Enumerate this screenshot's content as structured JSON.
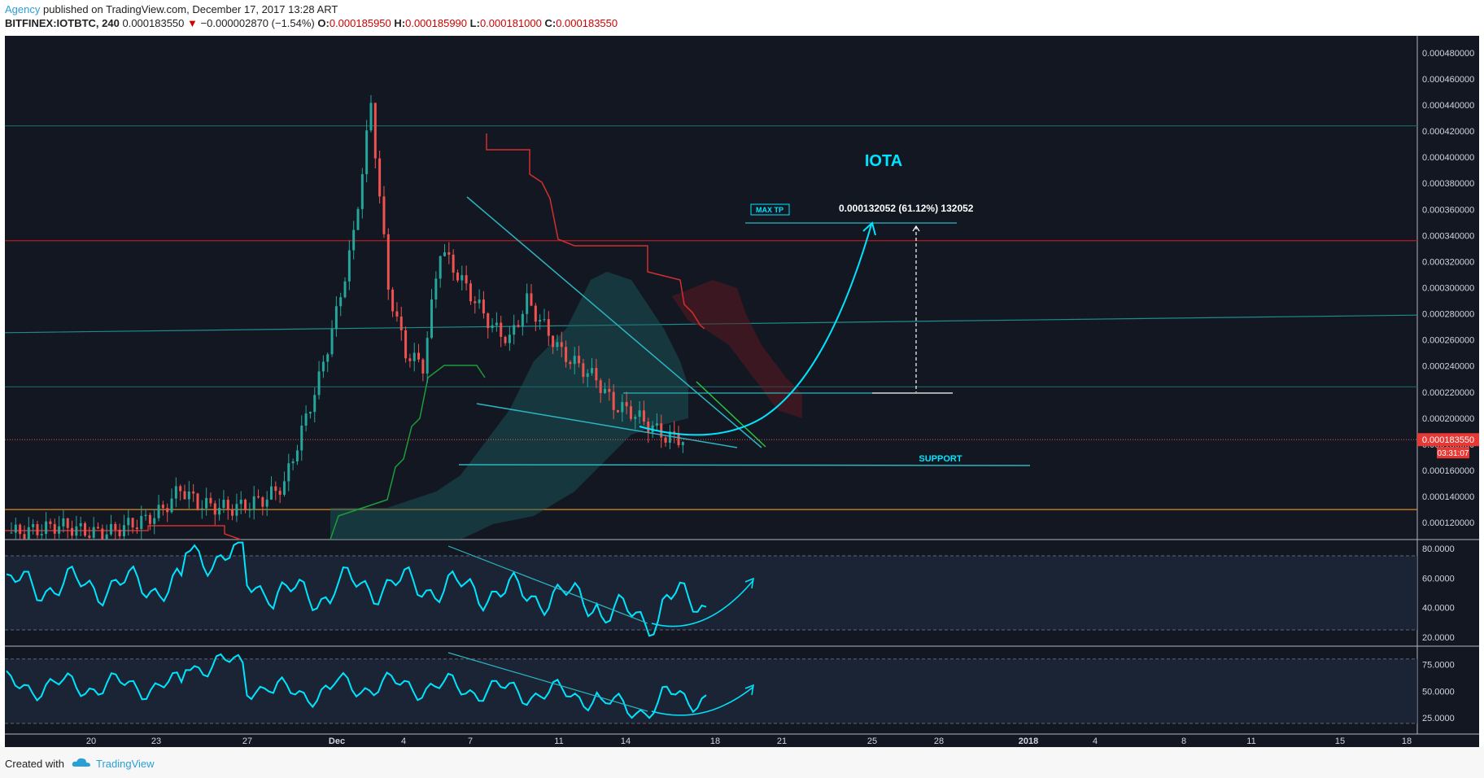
{
  "header": {
    "author": "Agency",
    "published": "published on TradingView.com, December 17, 2017 13:28 ART",
    "symbol": "BITFINEX:IOTBTC, 240",
    "last": "0.000183550",
    "arrow": "▼",
    "change": "−0.000002870 (−1.54%)",
    "o_label": "O:",
    "o_val": "0.000185950",
    "h_label": "H:",
    "h_val": "0.000185990",
    "l_label": "L:",
    "l_val": "0.000181000",
    "c_label": "C:",
    "c_val": "0.000183550"
  },
  "footer": {
    "created": "Created with",
    "brand": "TradingView",
    "logo_icon": "tradingview-cloud-icon"
  },
  "colors": {
    "background": "#131722",
    "up": "#26a69a",
    "down": "#ef5350",
    "cyan": "#00e5ff",
    "teal": "#1e8c8c",
    "red_line": "#b71c1c",
    "orange_line": "#e08a1e",
    "rsi": "#00e5ff"
  },
  "chart_data": [
    {
      "type": "candlestick",
      "title": "IOTA",
      "symbol": "BITFINEX:IOTBTC",
      "interval": "240",
      "y_ticks": [
        "0.000120000",
        "0.000140000",
        "0.000160000",
        "0.000180000",
        "0.000200000",
        "0.000220000",
        "0.000240000",
        "0.000260000",
        "0.000280000",
        "0.000300000",
        "0.000320000",
        "0.000340000",
        "0.000360000",
        "0.000380000",
        "0.000400000",
        "0.000420000",
        "0.000440000",
        "0.000460000",
        "0.000480000"
      ],
      "ylim": [
        0.000107,
        0.000493
      ],
      "x_ticks": [
        "20",
        "23",
        "27",
        "Dec",
        "4",
        "7",
        "11",
        "14",
        "18",
        "21",
        "25",
        "28",
        "2018",
        "4",
        "8",
        "11",
        "15",
        "18"
      ],
      "last_price": "0.000183550",
      "countdown": "03:31:07",
      "annotations": {
        "measure_label": "0.000132052 (61.12%) 132052",
        "max_tp_label": "MAX TP",
        "support_label": "SUPPORT"
      },
      "horizontal_levels": [
        0.000424,
        0.000336,
        0.000224,
        0.00013
      ],
      "close_series": [
        0.000112,
        0.000113,
        0.000115,
        0.000118,
        0.000115,
        0.000112,
        0.000113,
        0.000118,
        0.000122,
        0.00013,
        0.000146,
        0.000135,
        0.000132,
        0.000131,
        0.000134,
        0.000139,
        0.00015,
        0.00019,
        0.00023,
        0.00028,
        0.00034,
        0.00044,
        0.0003,
        0.00025,
        0.00024,
        0.00033,
        0.00031,
        0.00029,
        0.00027,
        0.00026,
        0.00029,
        0.00027,
        0.00025,
        0.00024,
        0.00023,
        0.00021,
        0.000205,
        0.000195,
        0.000186,
        0.000184
      ]
    },
    {
      "type": "line",
      "name": "oscillator-1",
      "y_ticks": [
        "20.0000",
        "40.0000",
        "60.0000",
        "80.0000"
      ],
      "ylim": [
        14,
        86
      ],
      "band": [
        25,
        75
      ]
    },
    {
      "type": "line",
      "name": "oscillator-2",
      "y_ticks": [
        "25.0000",
        "50.0000",
        "75.0000"
      ],
      "ylim": [
        10,
        92
      ],
      "band": [
        20,
        80
      ]
    }
  ]
}
